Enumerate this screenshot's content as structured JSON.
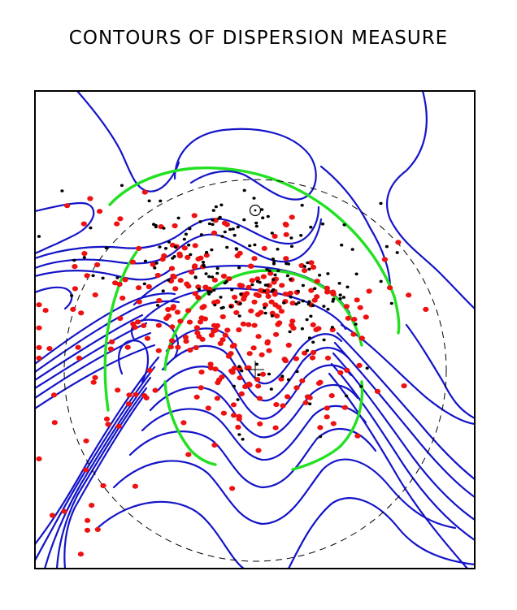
{
  "chart_data": {
    "type": "scatter",
    "title": "CONTOURS OF DISPERSION MEASURE",
    "xlabel": "",
    "ylabel": "",
    "grid": false,
    "legend": "none",
    "colors": {
      "frame": "#000000",
      "contours": "#1414c8",
      "green_ring": "#22e022",
      "dashed_circle": "#000000",
      "red_points": "#ee1111",
      "black_points": "#000000"
    },
    "symbols": {
      "sun": "sun-symbol (circle with dot)",
      "center": "plus-marker"
    },
    "series": [
      {
        "color": "red",
        "marker": "dot",
        "count": 330
      },
      {
        "color": "black",
        "marker": "dot",
        "count": 190
      }
    ]
  }
}
